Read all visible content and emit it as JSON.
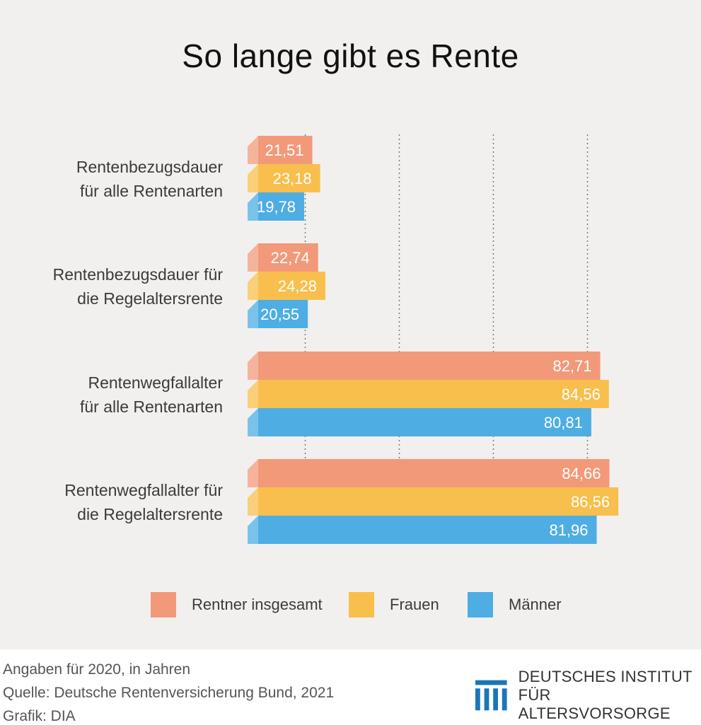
{
  "title": "So lange gibt es Rente",
  "colors": {
    "total": "#f2997a",
    "women": "#f8bf4d",
    "men": "#4eade3",
    "background": "#f1f0ee"
  },
  "chart_data": {
    "type": "bar",
    "orientation": "horizontal",
    "title": "So lange gibt es Rente",
    "categories": [
      [
        "Rentenbezugsdauer",
        "für alle Rentenarten"
      ],
      [
        "Rentenbezugsdauer für",
        "die Regelaltersrente"
      ],
      [
        "Rentenwegfallalter",
        "für alle Rentenarten"
      ],
      [
        "Rentenwegfallalter für",
        "die Regelaltersrente"
      ]
    ],
    "series": [
      {
        "name": "Rentner insgesamt",
        "color": "#f2997a",
        "values": [
          21.51,
          22.74,
          82.71,
          84.66
        ],
        "labels": [
          "21,51",
          "22,74",
          "82,71",
          "84,66"
        ]
      },
      {
        "name": "Frauen",
        "color": "#f8bf4d",
        "values": [
          23.18,
          24.28,
          84.56,
          86.56
        ],
        "labels": [
          "23,18",
          "24,28",
          "84,56",
          "86,56"
        ]
      },
      {
        "name": "Männer",
        "color": "#4eade3",
        "values": [
          19.78,
          20.55,
          80.81,
          81.96
        ],
        "labels": [
          "19,78",
          "20,55",
          "80,81",
          "81,96"
        ]
      }
    ],
    "xlim": [
      10,
      90
    ],
    "gridlines": [
      20,
      40,
      60,
      80
    ],
    "grid": "dotted vertical",
    "legend_position": "bottom"
  },
  "legend": [
    {
      "label": "Rentner insgesamt",
      "color": "#f2997a"
    },
    {
      "label": "Frauen",
      "color": "#f8bf4d"
    },
    {
      "label": "Männer",
      "color": "#4eade3"
    }
  ],
  "footer": {
    "line1": "Angaben für 2020, in Jahren",
    "line2": "Quelle: Deutsche Rentenversicherung Bund, 2021",
    "line3": "Grafik: DIA"
  },
  "logo": {
    "line1": "DEUTSCHES INSTITUT",
    "line2": "FÜR ALTERSVORSORGE",
    "icon": "dia-logo-icon"
  }
}
